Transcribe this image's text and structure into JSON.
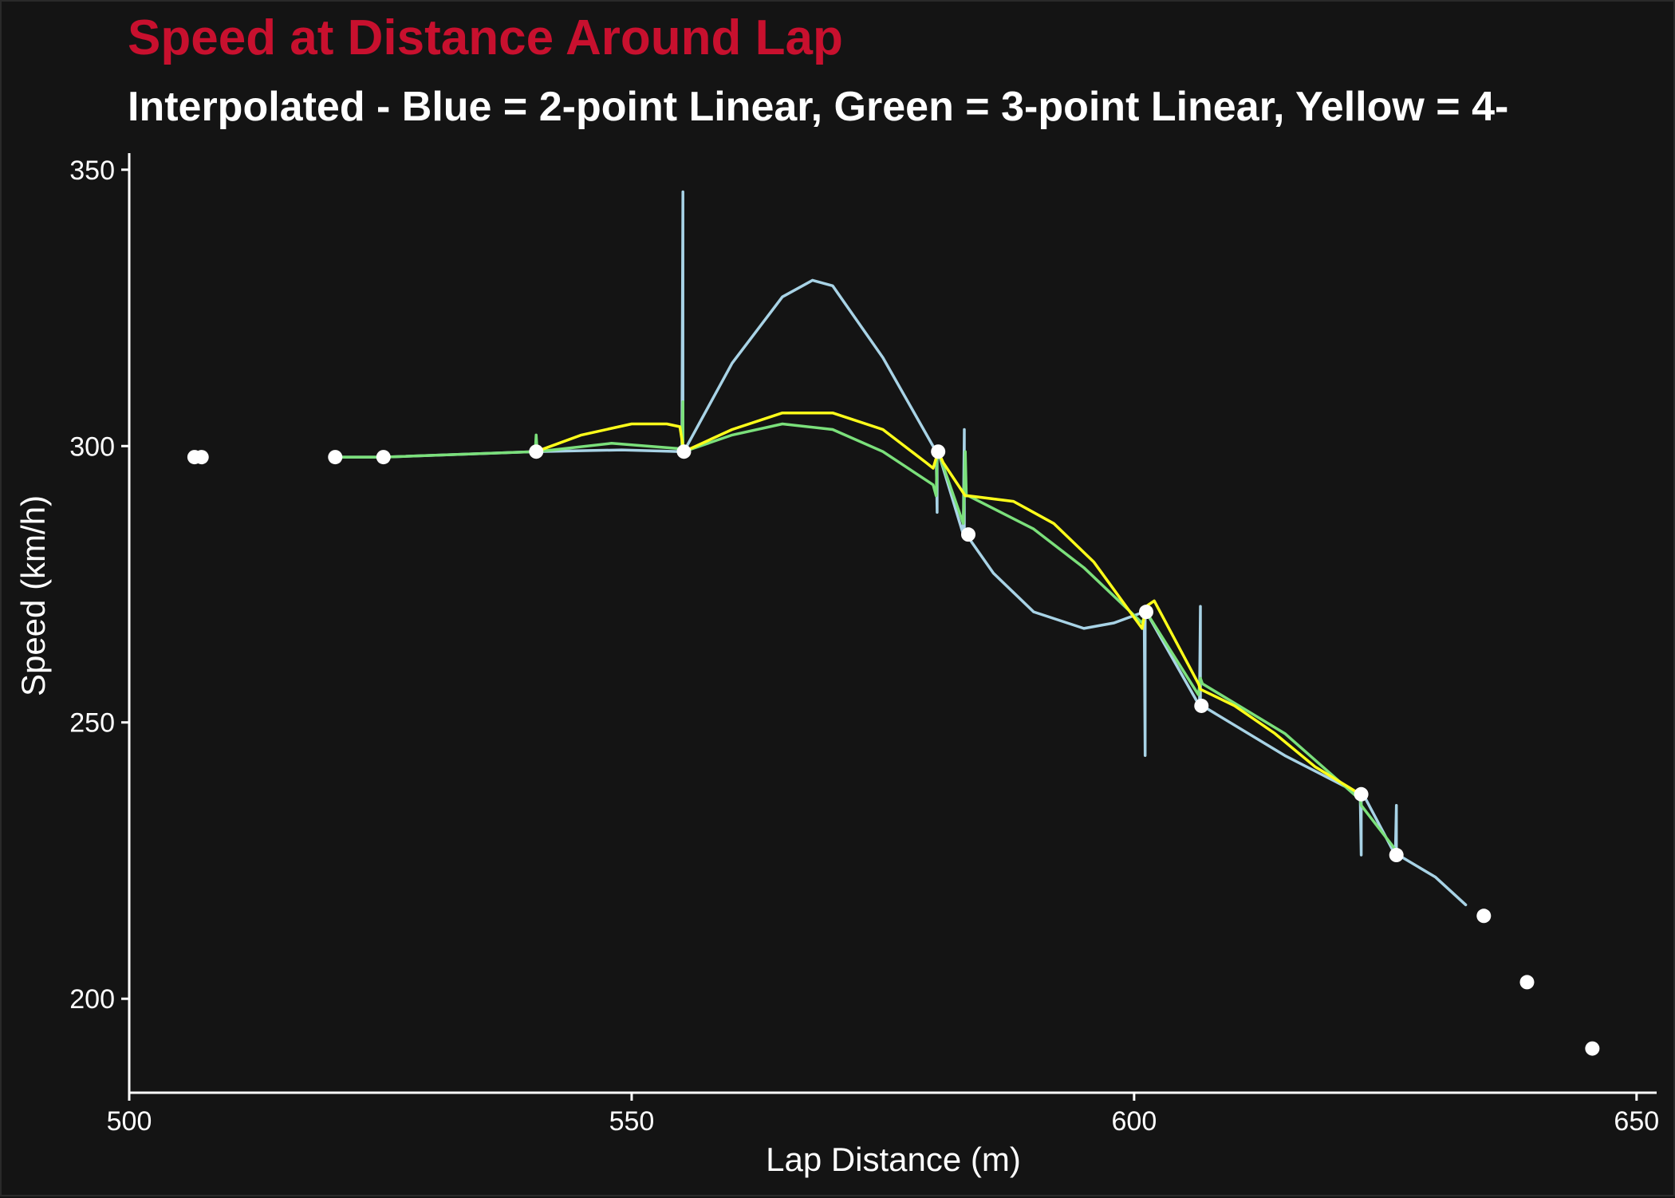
{
  "chart_data": {
    "type": "line",
    "title": "Speed at Distance Around Lap",
    "subtitle": "Interpolated - Blue = 2-point Linear, Green = 3-point Linear, Yellow = 4-",
    "xlabel": "Lap Distance (m)",
    "ylabel": "Speed (km/h)",
    "xlim": [
      500,
      652
    ],
    "ylim": [
      183,
      353
    ],
    "x_ticks": [
      500,
      550,
      600,
      650
    ],
    "y_ticks": [
      200,
      250,
      300,
      350
    ],
    "grid": false,
    "legend": "none",
    "colors": {
      "background": "#141414",
      "title": "#c8102e",
      "text": "#ffffff",
      "points": "#ffffff",
      "blue": "#a8d3e6",
      "green": "#7be07b",
      "yellow": "#ffff1a"
    },
    "points": [
      {
        "x": 506.5,
        "y": 298
      },
      {
        "x": 507.2,
        "y": 298
      },
      {
        "x": 520.5,
        "y": 298
      },
      {
        "x": 525.3,
        "y": 298
      },
      {
        "x": 540.5,
        "y": 299
      },
      {
        "x": 555.2,
        "y": 299
      },
      {
        "x": 580.5,
        "y": 299
      },
      {
        "x": 583.5,
        "y": 284
      },
      {
        "x": 601.2,
        "y": 270
      },
      {
        "x": 606.7,
        "y": 253
      },
      {
        "x": 622.6,
        "y": 237
      },
      {
        "x": 626.1,
        "y": 226
      },
      {
        "x": 634.8,
        "y": 215
      },
      {
        "x": 639.1,
        "y": 203
      },
      {
        "x": 645.6,
        "y": 191
      }
    ],
    "series": [
      {
        "color": "#a8d3e6",
        "x": [
          520.5,
          525.3,
          540.5,
          549,
          555.0,
          555.1,
          555.1,
          555.2,
          560,
          565,
          568,
          570,
          575,
          580.3,
          580.4,
          580.4,
          580.5,
          583.0,
          583.1,
          583.1,
          583.3,
          586,
          590,
          595,
          598,
          601.0,
          601.1,
          601.1,
          601.2,
          606.5,
          606.6,
          606.6,
          606.8,
          615,
          622.5,
          622.6,
          622.6,
          622.8,
          626.0,
          626.1,
          626.1,
          626.3,
          630,
          633
        ],
        "y": [
          298,
          298,
          299,
          299.3,
          299,
          346,
          299,
          299,
          315,
          327,
          330,
          329,
          316,
          299,
          288,
          299,
          299,
          284,
          303,
          284,
          284,
          277,
          270,
          267,
          268,
          270,
          244,
          270,
          270,
          253,
          271,
          253,
          253,
          244,
          237,
          226,
          237,
          237,
          226,
          235,
          226,
          226,
          222,
          217
        ]
      },
      {
        "color": "#7be07b",
        "x": [
          520.5,
          525.3,
          540.4,
          540.5,
          540.6,
          548,
          555.0,
          555.1,
          555.1,
          555.2,
          560,
          565,
          570,
          575,
          580.0,
          580.3,
          580.4,
          580.5,
          583.0,
          583.2,
          583.3,
          583.5,
          590,
          595,
          600.8,
          601.2,
          606.4,
          606.6,
          606.8,
          615,
          622.5,
          622.6,
          626.0,
          626.1
        ],
        "y": [
          298,
          298,
          299,
          302,
          299,
          300.5,
          299.5,
          308,
          299,
          299,
          302,
          304,
          303,
          299,
          293,
          291,
          298,
          299,
          286,
          299,
          291,
          291,
          285,
          278,
          268,
          270,
          255,
          258,
          257,
          248,
          236,
          235,
          227,
          226
        ]
      },
      {
        "color": "#ffff1a",
        "x": [
          540.5,
          545,
          550,
          553.5,
          554.8,
          555.1,
          555.2,
          560,
          565,
          570,
          575,
          579.3,
          580.0,
          580.5,
          581.0,
          583.2,
          583.5,
          588,
          592,
          596,
          600.8,
          601.2,
          602.0,
          606.4,
          606.6,
          610,
          614,
          618,
          622.5
        ],
        "y": [
          299,
          302,
          304,
          304,
          303.5,
          300,
          299,
          303,
          306,
          306,
          303,
          297,
          296,
          299,
          297,
          291,
          291,
          290,
          286,
          279,
          267,
          271,
          272,
          257,
          256,
          253,
          248,
          242,
          237
        ]
      }
    ]
  }
}
